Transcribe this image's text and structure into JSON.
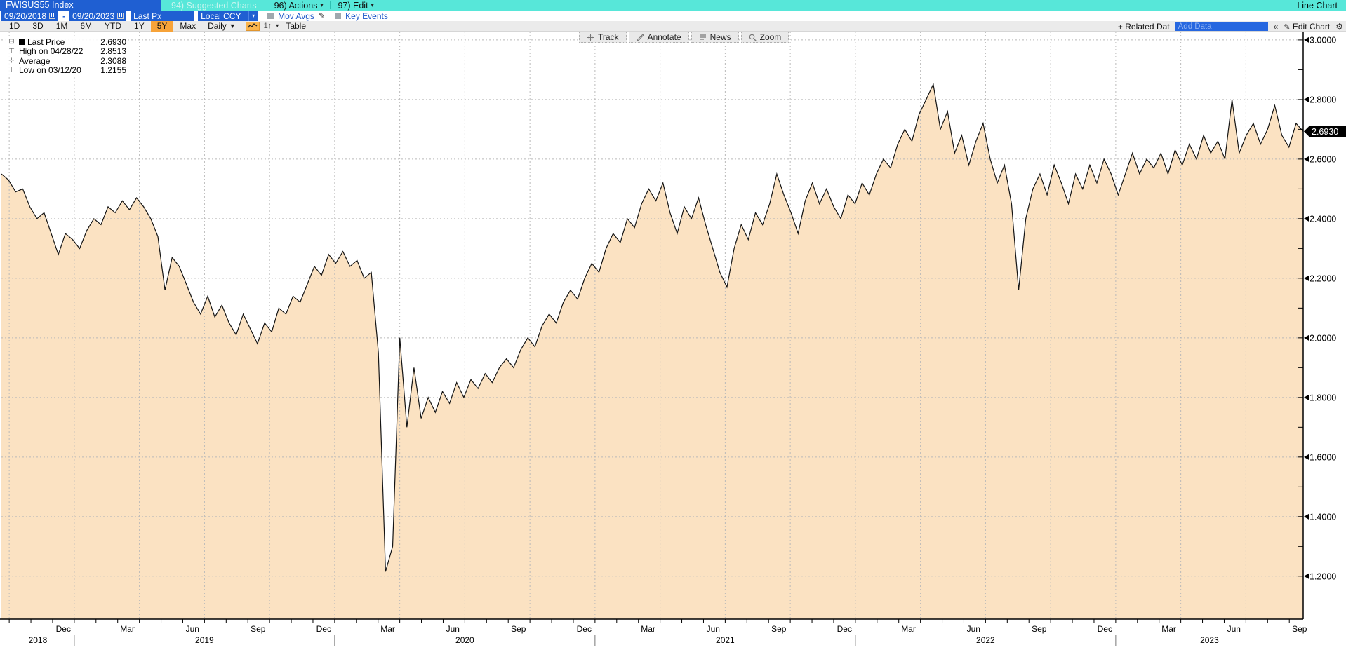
{
  "titlebar": {
    "ticker": "FWISUS55 Index",
    "suggested": "94) Suggested Charts",
    "actions": "96) Actions",
    "edit": "97) Edit",
    "chart_type": "Line Chart"
  },
  "controls": {
    "date_from": "09/20/2018",
    "date_to": "09/20/2023",
    "range_separator": "-",
    "price_field": "Last Px",
    "currency": "Local CCY",
    "mov_avgs": "Mov Avgs",
    "key_events": "Key Events"
  },
  "toolbar": {
    "periods": [
      "1D",
      "3D",
      "1M",
      "6M",
      "YTD",
      "1Y",
      "5Y",
      "Max"
    ],
    "active_period": "5Y",
    "frequency": "Daily",
    "table": "Table",
    "related_data": "+ Related Dat",
    "add_data_placeholder": "Add Data",
    "collapse": "«",
    "edit_chart": "Edit Chart"
  },
  "chart_tools": [
    "Track",
    "Annotate",
    "News",
    "Zoom"
  ],
  "legend": {
    "rows": [
      {
        "marker": "last-price-swatch",
        "label": "Last Price",
        "value": "2.6930"
      },
      {
        "marker": "high-marker",
        "label": "High on 04/28/22",
        "value": "2.8513"
      },
      {
        "marker": "average-marker",
        "label": "Average",
        "value": "2.3088"
      },
      {
        "marker": "low-marker",
        "label": "Low on 03/12/20",
        "value": "1.2155"
      }
    ]
  },
  "chart_data": {
    "type": "area",
    "title": "FWISUS55 Index Last Px, 09/20/2018 - 09/20/2023, Daily",
    "x_domain": [
      2018.72,
      2023.72
    ],
    "ylim": [
      1.056,
      3.028
    ],
    "last_price": 2.693,
    "last_price_label": "2.6930",
    "high": {
      "date": "04/28/22",
      "value": 2.8513
    },
    "low": {
      "date": "03/12/20",
      "value": 1.2155
    },
    "average": 2.3088,
    "yticks": {
      "values": [
        3.0,
        2.8,
        2.6,
        2.4,
        2.2,
        2.0,
        1.8,
        1.6,
        1.4,
        1.2
      ],
      "labels": [
        "3.0000",
        "2.8000",
        "2.6000",
        "2.4000",
        "2.2000",
        "2.0000",
        "1.8000",
        "1.6000",
        "1.4000",
        "1.2000"
      ]
    },
    "xticks": {
      "months": [
        {
          "label": "Dec",
          "t": 2018.958
        },
        {
          "label": "Mar",
          "t": 2019.204
        },
        {
          "label": "Jun",
          "t": 2019.454
        },
        {
          "label": "Sep",
          "t": 2019.706
        },
        {
          "label": "Dec",
          "t": 2019.958
        },
        {
          "label": "Mar",
          "t": 2020.204
        },
        {
          "label": "Jun",
          "t": 2020.454
        },
        {
          "label": "Sep",
          "t": 2020.706
        },
        {
          "label": "Dec",
          "t": 2020.958
        },
        {
          "label": "Mar",
          "t": 2021.204
        },
        {
          "label": "Jun",
          "t": 2021.454
        },
        {
          "label": "Sep",
          "t": 2021.706
        },
        {
          "label": "Dec",
          "t": 2021.958
        },
        {
          "label": "Mar",
          "t": 2022.204
        },
        {
          "label": "Jun",
          "t": 2022.454
        },
        {
          "label": "Sep",
          "t": 2022.706
        },
        {
          "label": "Dec",
          "t": 2022.958
        },
        {
          "label": "Mar",
          "t": 2023.204
        },
        {
          "label": "Jun",
          "t": 2023.454
        },
        {
          "label": "Sep",
          "t": 2023.706
        }
      ],
      "years": [
        {
          "label": "2018",
          "t": 2018.86
        },
        {
          "label": "2019",
          "t": 2019.5
        },
        {
          "label": "2020",
          "t": 2020.5
        },
        {
          "label": "2021",
          "t": 2021.5
        },
        {
          "label": "2022",
          "t": 2022.5
        },
        {
          "label": "2023",
          "t": 2023.36
        }
      ],
      "year_dividers": [
        2019,
        2020,
        2021,
        2022,
        2023
      ]
    },
    "series": [
      {
        "name": "Last Px",
        "values": [
          2.55,
          2.53,
          2.49,
          2.5,
          2.44,
          2.4,
          2.42,
          2.35,
          2.28,
          2.35,
          2.33,
          2.3,
          2.36,
          2.4,
          2.38,
          2.44,
          2.42,
          2.46,
          2.43,
          2.47,
          2.44,
          2.4,
          2.34,
          2.16,
          2.27,
          2.24,
          2.18,
          2.12,
          2.08,
          2.14,
          2.07,
          2.11,
          2.05,
          2.01,
          2.08,
          2.03,
          1.98,
          2.05,
          2.02,
          2.1,
          2.08,
          2.14,
          2.12,
          2.18,
          2.24,
          2.21,
          2.28,
          2.25,
          2.29,
          2.24,
          2.26,
          2.2,
          2.22,
          1.95,
          1.2155,
          1.3,
          2.0,
          1.7,
          1.9,
          1.73,
          1.8,
          1.75,
          1.82,
          1.78,
          1.85,
          1.8,
          1.86,
          1.83,
          1.88,
          1.85,
          1.9,
          1.93,
          1.9,
          1.96,
          2.0,
          1.97,
          2.04,
          2.08,
          2.05,
          2.12,
          2.16,
          2.13,
          2.2,
          2.25,
          2.22,
          2.3,
          2.35,
          2.32,
          2.4,
          2.37,
          2.45,
          2.5,
          2.46,
          2.52,
          2.42,
          2.35,
          2.44,
          2.4,
          2.47,
          2.38,
          2.3,
          2.22,
          2.17,
          2.3,
          2.38,
          2.33,
          2.42,
          2.38,
          2.45,
          2.55,
          2.48,
          2.42,
          2.35,
          2.46,
          2.52,
          2.45,
          2.5,
          2.44,
          2.4,
          2.48,
          2.45,
          2.52,
          2.48,
          2.55,
          2.6,
          2.57,
          2.65,
          2.7,
          2.66,
          2.75,
          2.8,
          2.8513,
          2.7,
          2.76,
          2.62,
          2.68,
          2.58,
          2.66,
          2.72,
          2.6,
          2.52,
          2.58,
          2.45,
          2.16,
          2.4,
          2.5,
          2.55,
          2.48,
          2.58,
          2.52,
          2.45,
          2.55,
          2.5,
          2.58,
          2.52,
          2.6,
          2.55,
          2.48,
          2.55,
          2.62,
          2.55,
          2.6,
          2.57,
          2.62,
          2.55,
          2.63,
          2.58,
          2.65,
          2.6,
          2.68,
          2.62,
          2.66,
          2.6,
          2.8,
          2.62,
          2.68,
          2.72,
          2.65,
          2.7,
          2.78,
          2.68,
          2.64,
          2.72,
          2.693
        ]
      }
    ],
    "colors": {
      "fill": "#fbe2c2",
      "line": "#141414",
      "grid": "#b9b9b9",
      "axis": "#000000",
      "badge_bg": "#000000",
      "badge_text": "#ffffff"
    },
    "legend_position": "top-left",
    "grid": true
  },
  "accent_colors": {
    "teal": "#57e7d9",
    "blue": "#1f5fd2",
    "orange": "#f7a339"
  }
}
